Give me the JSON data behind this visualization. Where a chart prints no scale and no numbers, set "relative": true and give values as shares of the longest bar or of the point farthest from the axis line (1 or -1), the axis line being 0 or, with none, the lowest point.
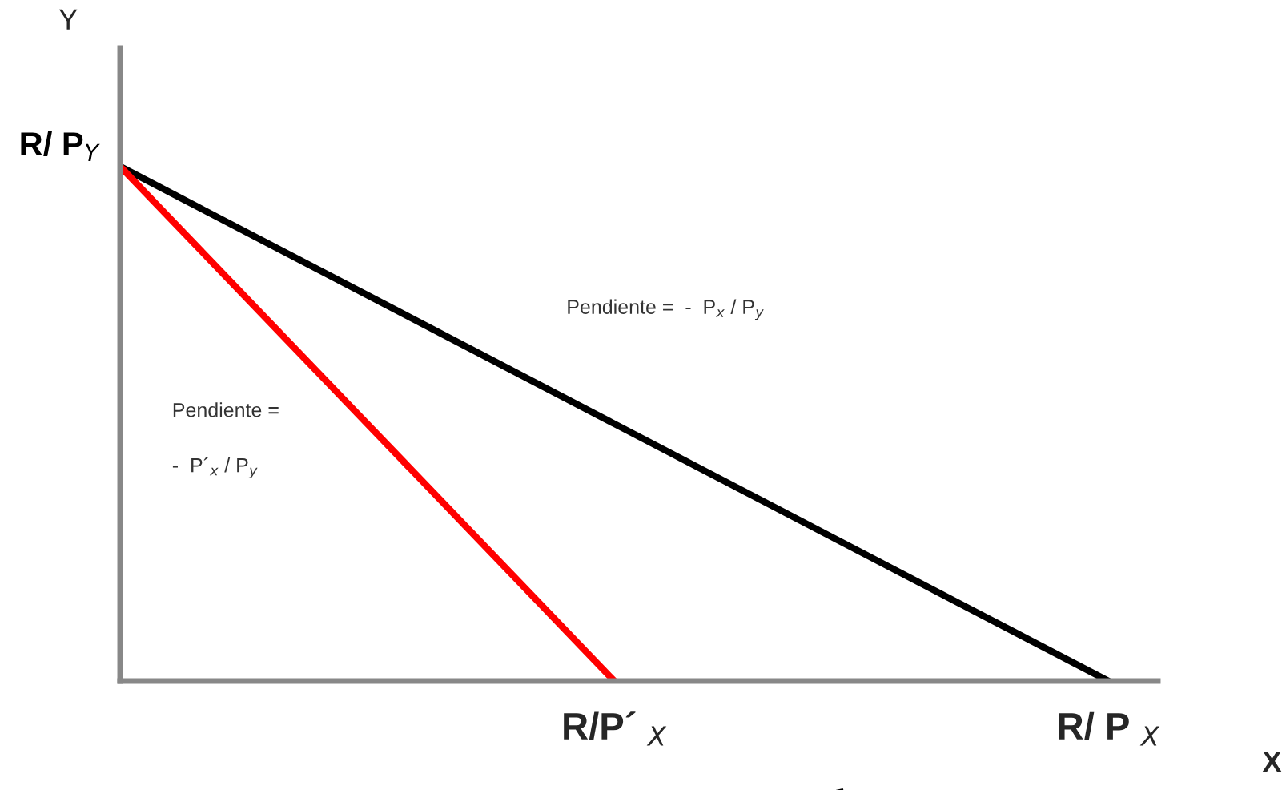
{
  "chart_data": {
    "type": "line",
    "relative": true,
    "xlabel": "X",
    "ylabel": "Y",
    "categories": [
      null,
      "R/P´ $_{X}$",
      "R/ P $_{X}$"
    ],
    "series": [
      {
        "color": "#000000",
        "values": [
          1,
          0.5,
          0
        ]
      },
      {
        "color": "#ff0000",
        "values": [
          1,
          0,
          null
        ]
      }
    ],
    "annotations": [
      "Pendiente =  -  P$_{x}$ / P$_{y}$",
      "Pendiente =\n\n-  P´$_{x}$ / P$_{y}$",
      "R/ P$_{Y}$"
    ],
    "grid": false,
    "legend": false,
    "marker": "none",
    "line_style": "solid"
  }
}
